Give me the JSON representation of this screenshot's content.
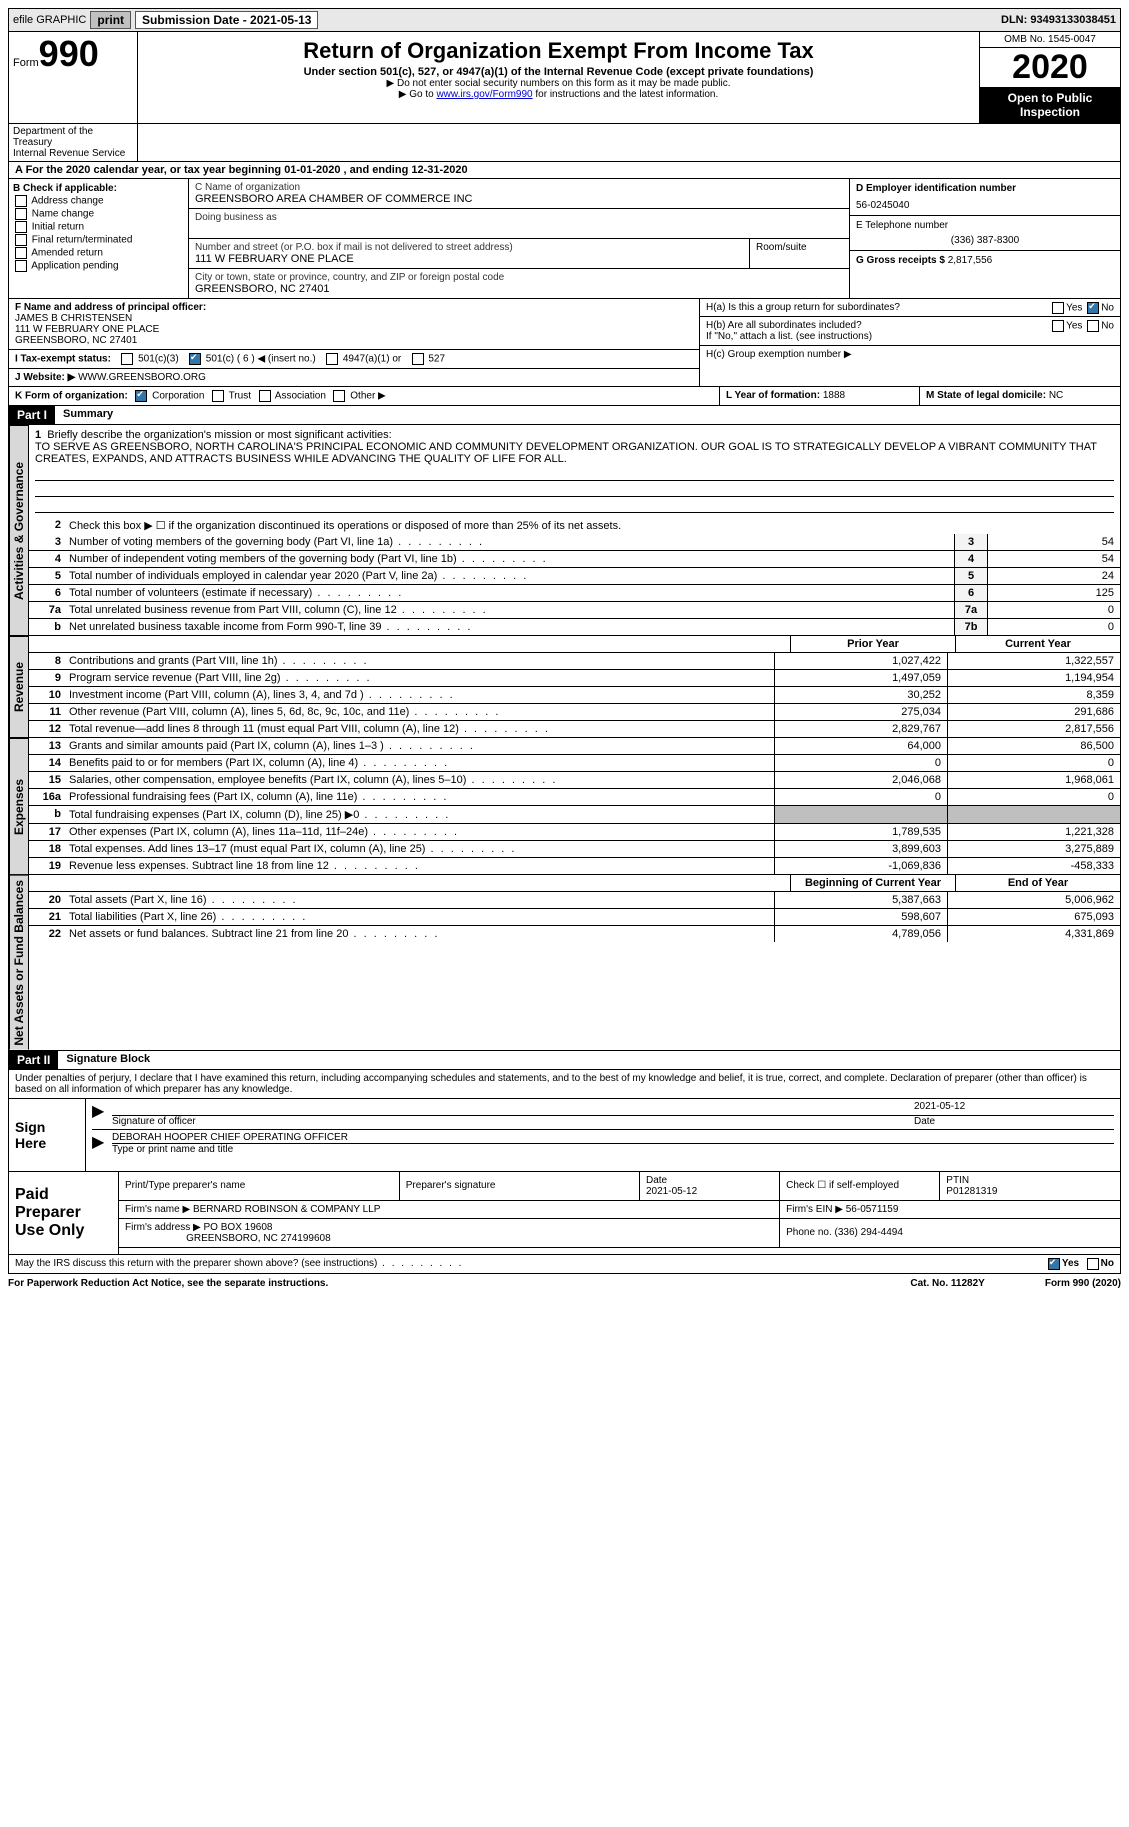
{
  "topbar": {
    "efile": "efile GRAPHIC",
    "print": "print",
    "submission": "Submission Date - 2021-05-13",
    "dln": "DLN: 93493133038451"
  },
  "header": {
    "form_word": "Form",
    "form_num": "990",
    "title": "Return of Organization Exempt From Income Tax",
    "subtitle": "Under section 501(c), 527, or 4947(a)(1) of the Internal Revenue Code (except private foundations)",
    "note1": "▶ Do not enter social security numbers on this form as it may be made public.",
    "note2_pre": "▶ Go to ",
    "note2_link": "www.irs.gov/Form990",
    "note2_post": " for instructions and the latest information.",
    "omb": "OMB No. 1545-0047",
    "year": "2020",
    "open": "Open to Public Inspection",
    "dept1": "Department of the Treasury",
    "dept2": "Internal Revenue Service"
  },
  "period": {
    "line": "A For the 2020 calendar year, or tax year beginning 01-01-2020   , and ending 12-31-2020"
  },
  "boxB": {
    "label": "B Check if applicable:",
    "opts": [
      "Address change",
      "Name change",
      "Initial return",
      "Final return/terminated",
      "Amended return",
      "Application pending"
    ]
  },
  "boxC": {
    "name_lbl": "C Name of organization",
    "name": "GREENSBORO AREA CHAMBER OF COMMERCE INC",
    "dba_lbl": "Doing business as",
    "addr_lbl": "Number and street (or P.O. box if mail is not delivered to street address)",
    "addr": "111 W FEBRUARY ONE PLACE",
    "room_lbl": "Room/suite",
    "city_lbl": "City or town, state or province, country, and ZIP or foreign postal code",
    "city": "GREENSBORO, NC  27401"
  },
  "boxD": {
    "lbl": "D Employer identification number",
    "val": "56-0245040"
  },
  "boxE": {
    "lbl": "E Telephone number",
    "val": "(336) 387-8300"
  },
  "boxG": {
    "lbl": "G Gross receipts $",
    "val": "2,817,556"
  },
  "boxF": {
    "lbl": "F  Name and address of principal officer:",
    "name": "JAMES B CHRISTENSEN",
    "addr1": "111 W FEBRUARY ONE PLACE",
    "addr2": "GREENSBORO, NC  27401"
  },
  "boxH": {
    "ha": "H(a)  Is this a group return for subordinates?",
    "hb": "H(b)  Are all subordinates included?",
    "hb_note": "If \"No,\" attach a list. (see instructions)",
    "hc": "H(c)  Group exemption number ▶"
  },
  "boxI": {
    "lbl": "I  Tax-exempt status:",
    "c3": "501(c)(3)",
    "c": "501(c) ( 6 ) ◀ (insert no.)",
    "a1": "4947(a)(1) or",
    "five27": "527"
  },
  "boxJ": {
    "lbl": "J  Website: ▶",
    "val": "WWW.GREENSBORO.ORG"
  },
  "boxK": {
    "lbl": "K Form of organization:",
    "corp": "Corporation",
    "trust": "Trust",
    "assoc": "Association",
    "other": "Other ▶"
  },
  "boxL": {
    "lbl": "L Year of formation:",
    "val": "1888"
  },
  "boxM": {
    "lbl": "M State of legal domicile:",
    "val": "NC"
  },
  "part1": {
    "hdr": "Part I",
    "title": "Summary",
    "q1_lbl": "1",
    "q1": "Briefly describe the organization's mission or most significant activities:",
    "mission": "TO SERVE AS GREENSBORO, NORTH CAROLINA'S PRINCIPAL ECONOMIC AND COMMUNITY DEVELOPMENT ORGANIZATION. OUR GOAL IS TO STRATEGICALLY DEVELOP A VIBRANT COMMUNITY THAT CREATES, EXPANDS, AND ATTRACTS BUSINESS WHILE ADVANCING THE QUALITY OF LIFE FOR ALL.",
    "q2": "Check this box ▶ ☐  if the organization discontinued its operations or disposed of more than 25% of its net assets.",
    "lines": [
      {
        "n": "3",
        "t": "Number of voting members of the governing body (Part VI, line 1a)",
        "b": "3",
        "v": "54"
      },
      {
        "n": "4",
        "t": "Number of independent voting members of the governing body (Part VI, line 1b)",
        "b": "4",
        "v": "54"
      },
      {
        "n": "5",
        "t": "Total number of individuals employed in calendar year 2020 (Part V, line 2a)",
        "b": "5",
        "v": "24"
      },
      {
        "n": "6",
        "t": "Total number of volunteers (estimate if necessary)",
        "b": "6",
        "v": "125"
      },
      {
        "n": "7a",
        "t": "Total unrelated business revenue from Part VIII, column (C), line 12",
        "b": "7a",
        "v": "0"
      },
      {
        "n": "b",
        "t": "Net unrelated business taxable income from Form 990-T, line 39",
        "b": "7b",
        "v": "0"
      }
    ],
    "col_prior": "Prior Year",
    "col_current": "Current Year",
    "revenue": [
      {
        "n": "8",
        "t": "Contributions and grants (Part VIII, line 1h)",
        "p": "1,027,422",
        "c": "1,322,557"
      },
      {
        "n": "9",
        "t": "Program service revenue (Part VIII, line 2g)",
        "p": "1,497,059",
        "c": "1,194,954"
      },
      {
        "n": "10",
        "t": "Investment income (Part VIII, column (A), lines 3, 4, and 7d )",
        "p": "30,252",
        "c": "8,359"
      },
      {
        "n": "11",
        "t": "Other revenue (Part VIII, column (A), lines 5, 6d, 8c, 9c, 10c, and 11e)",
        "p": "275,034",
        "c": "291,686"
      },
      {
        "n": "12",
        "t": "Total revenue—add lines 8 through 11 (must equal Part VIII, column (A), line 12)",
        "p": "2,829,767",
        "c": "2,817,556"
      }
    ],
    "expenses": [
      {
        "n": "13",
        "t": "Grants and similar amounts paid (Part IX, column (A), lines 1–3 )",
        "p": "64,000",
        "c": "86,500"
      },
      {
        "n": "14",
        "t": "Benefits paid to or for members (Part IX, column (A), line 4)",
        "p": "0",
        "c": "0"
      },
      {
        "n": "15",
        "t": "Salaries, other compensation, employee benefits (Part IX, column (A), lines 5–10)",
        "p": "2,046,068",
        "c": "1,968,061"
      },
      {
        "n": "16a",
        "t": "Professional fundraising fees (Part IX, column (A), line 11e)",
        "p": "0",
        "c": "0"
      },
      {
        "n": "b",
        "t": "Total fundraising expenses (Part IX, column (D), line 25) ▶0",
        "p": "",
        "c": "",
        "shade": true
      },
      {
        "n": "17",
        "t": "Other expenses (Part IX, column (A), lines 11a–11d, 11f–24e)",
        "p": "1,789,535",
        "c": "1,221,328"
      },
      {
        "n": "18",
        "t": "Total expenses. Add lines 13–17 (must equal Part IX, column (A), line 25)",
        "p": "3,899,603",
        "c": "3,275,889"
      },
      {
        "n": "19",
        "t": "Revenue less expenses. Subtract line 18 from line 12",
        "p": "-1,069,836",
        "c": "-458,333"
      }
    ],
    "col_begin": "Beginning of Current Year",
    "col_end": "End of Year",
    "netassets": [
      {
        "n": "20",
        "t": "Total assets (Part X, line 16)",
        "p": "5,387,663",
        "c": "5,006,962"
      },
      {
        "n": "21",
        "t": "Total liabilities (Part X, line 26)",
        "p": "598,607",
        "c": "675,093"
      },
      {
        "n": "22",
        "t": "Net assets or fund balances. Subtract line 21 from line 20",
        "p": "4,789,056",
        "c": "4,331,869"
      }
    ],
    "vtab_gov": "Activities & Governance",
    "vtab_rev": "Revenue",
    "vtab_exp": "Expenses",
    "vtab_net": "Net Assets or Fund Balances"
  },
  "part2": {
    "hdr": "Part II",
    "title": "Signature Block",
    "decl": "Under penalties of perjury, I declare that I have examined this return, including accompanying schedules and statements, and to the best of my knowledge and belief, it is true, correct, and complete. Declaration of preparer (other than officer) is based on all information of which preparer has any knowledge.",
    "sign_here": "Sign Here",
    "sig_officer_lbl": "Signature of officer",
    "sig_date": "2021-05-12",
    "date_lbl": "Date",
    "officer_name": "DEBORAH HOOPER  CHIEF OPERATING OFFICER",
    "officer_lbl": "Type or print name and title",
    "paid_prep": "Paid Preparer Use Only",
    "prep_name_lbl": "Print/Type preparer's name",
    "prep_sig_lbl": "Preparer's signature",
    "prep_date_lbl": "Date",
    "prep_date": "2021-05-12",
    "check_self": "Check ☐ if self-employed",
    "ptin_lbl": "PTIN",
    "ptin": "P01281319",
    "firm_name_lbl": "Firm's name    ▶",
    "firm_name": "BERNARD ROBINSON & COMPANY LLP",
    "firm_ein_lbl": "Firm's EIN ▶",
    "firm_ein": "56-0571159",
    "firm_addr_lbl": "Firm's address ▶",
    "firm_addr1": "PO BOX 19608",
    "firm_addr2": "GREENSBORO, NC  274199608",
    "phone_lbl": "Phone no.",
    "phone": "(336) 294-4494",
    "discuss": "May the IRS discuss this return with the preparer shown above? (see instructions)",
    "yes": "Yes",
    "no": "No"
  },
  "footer": {
    "pra": "For Paperwork Reduction Act Notice, see the separate instructions.",
    "cat": "Cat. No. 11282Y",
    "form": "Form 990 (2020)"
  }
}
